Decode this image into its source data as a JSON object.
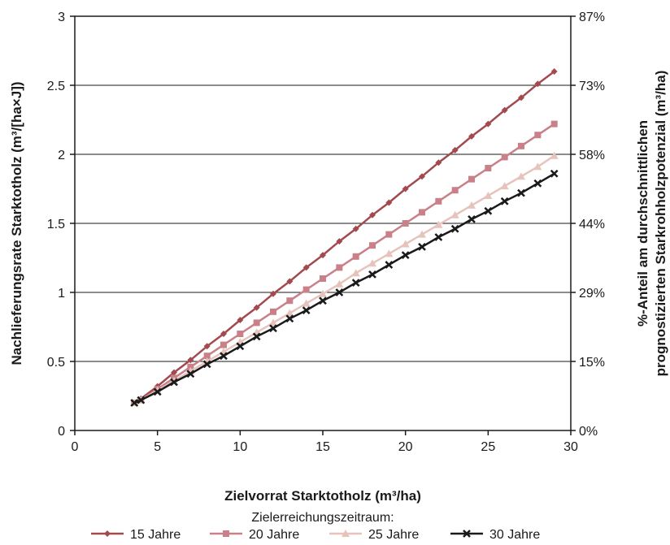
{
  "chart_data": {
    "type": "line",
    "xlabel": "Zielvorrat Starktotholz (m³/ha)",
    "ylabel": "Nachlieferungsrate Starktotholz (m³/[ha×J])",
    "y2label_line1": "%-Anteil am durchschnittlichen",
    "y2label_line2": "prognostizierten Starkrohholzpotenzial (m³/ha)",
    "xlim": [
      0,
      30
    ],
    "ylim": [
      0,
      3
    ],
    "xticks": [
      "0",
      "5",
      "10",
      "15",
      "20",
      "25",
      "30"
    ],
    "yticks": [
      "0",
      "0.5",
      "1",
      "1.5",
      "2",
      "2.5",
      "3"
    ],
    "y2ticks": [
      "0%",
      "15%",
      "29%",
      "44%",
      "58%",
      "73%",
      "87%"
    ],
    "grid": "horizontal",
    "legend_title": "Zielerreichungszeitraum:",
    "legend_position": "bottom",
    "x": [
      3.6,
      4,
      5,
      6,
      7,
      8,
      9,
      10,
      11,
      12,
      13,
      14,
      15,
      16,
      17,
      18,
      19,
      20,
      21,
      22,
      23,
      24,
      25,
      26,
      27,
      28,
      29
    ],
    "series": [
      {
        "name": "15 Jahre",
        "color": "#a34a4f",
        "marker": "diamond",
        "values": [
          0.2,
          0.23,
          0.32,
          0.42,
          0.51,
          0.61,
          0.7,
          0.8,
          0.89,
          0.99,
          1.08,
          1.18,
          1.27,
          1.37,
          1.46,
          1.56,
          1.65,
          1.75,
          1.84,
          1.94,
          2.03,
          2.13,
          2.22,
          2.32,
          2.41,
          2.51,
          2.6
        ]
      },
      {
        "name": "20 Jahre",
        "color": "#c98088",
        "marker": "square",
        "values": [
          0.2,
          0.22,
          0.3,
          0.38,
          0.46,
          0.54,
          0.62,
          0.7,
          0.78,
          0.86,
          0.94,
          1.02,
          1.1,
          1.18,
          1.26,
          1.34,
          1.42,
          1.5,
          1.58,
          1.66,
          1.74,
          1.82,
          1.9,
          1.98,
          2.06,
          2.14,
          2.22
        ]
      },
      {
        "name": "25 Jahre",
        "color": "#e6c4bc",
        "marker": "triangle",
        "values": [
          0.2,
          0.22,
          0.29,
          0.36,
          0.43,
          0.5,
          0.57,
          0.64,
          0.71,
          0.78,
          0.85,
          0.92,
          0.99,
          1.06,
          1.14,
          1.21,
          1.28,
          1.35,
          1.42,
          1.49,
          1.56,
          1.63,
          1.7,
          1.77,
          1.84,
          1.91,
          1.99
        ]
      },
      {
        "name": "30 Jahre",
        "color": "#1a1a1a",
        "marker": "x",
        "values": [
          0.2,
          0.22,
          0.28,
          0.35,
          0.41,
          0.48,
          0.54,
          0.61,
          0.68,
          0.74,
          0.81,
          0.87,
          0.94,
          1.0,
          1.07,
          1.13,
          1.2,
          1.27,
          1.33,
          1.4,
          1.46,
          1.53,
          1.59,
          1.66,
          1.72,
          1.79,
          1.86
        ]
      }
    ]
  }
}
